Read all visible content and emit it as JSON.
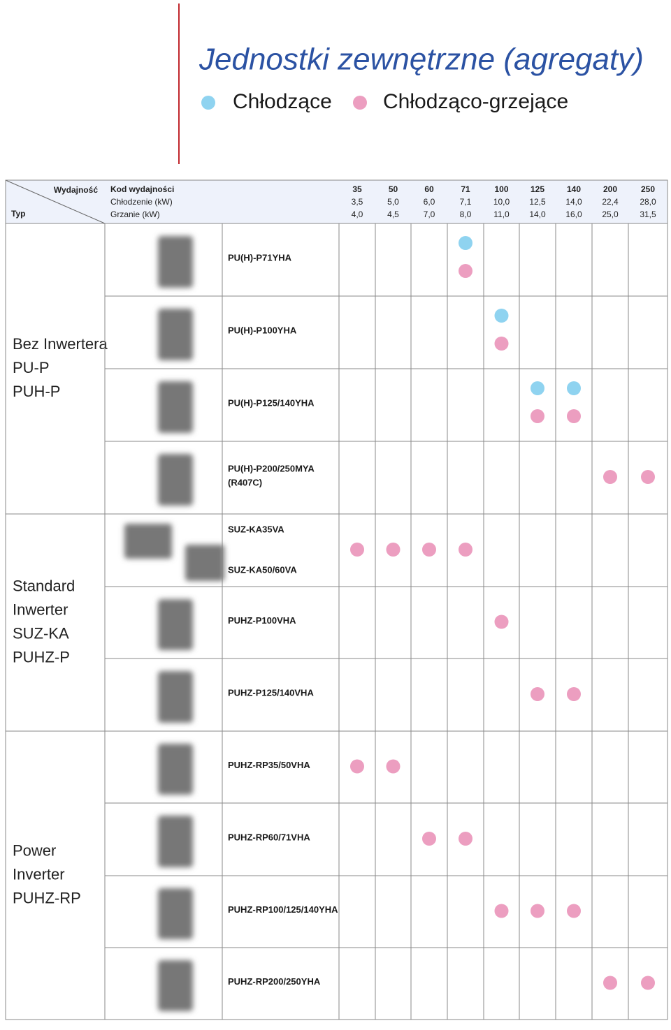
{
  "header": {
    "title": "Jednostki zewnętrzne (agregaty)",
    "legend": [
      {
        "label": "Chłodzące",
        "color": "#8fd3f0"
      },
      {
        "label": "Chłodząco-grzejące",
        "color": "#ec9ec0"
      }
    ]
  },
  "table": {
    "corner_top": "Wydajność",
    "corner_bottom": "Typ",
    "row_labels": [
      "Kod wydajności",
      "Chłodzenie (kW)",
      "Grzanie (kW)"
    ],
    "columns": [
      {
        "code": "35",
        "cooling": "3,5",
        "heating": "4,0"
      },
      {
        "code": "50",
        "cooling": "5,0",
        "heating": "4,5"
      },
      {
        "code": "60",
        "cooling": "6,0",
        "heating": "7,0"
      },
      {
        "code": "71",
        "cooling": "7,1",
        "heating": "8,0"
      },
      {
        "code": "100",
        "cooling": "10,0",
        "heating": "11,0"
      },
      {
        "code": "125",
        "cooling": "12,5",
        "heating": "14,0"
      },
      {
        "code": "140",
        "cooling": "14,0",
        "heating": "16,0"
      },
      {
        "code": "200",
        "cooling": "22,4",
        "heating": "25,0"
      },
      {
        "code": "250",
        "cooling": "28,0",
        "heating": "31,5"
      }
    ],
    "groups": [
      {
        "label": [
          "Bez Inwertera",
          "PU-P",
          "PUH-P"
        ],
        "rows": [
          {
            "models": [
              "PU(H)-P71YHA"
            ],
            "cooling": [
              false,
              false,
              false,
              true,
              false,
              false,
              false,
              false,
              false
            ],
            "heating": [
              false,
              false,
              false,
              true,
              false,
              false,
              false,
              false,
              false
            ]
          },
          {
            "models": [
              "PU(H)-P100YHA"
            ],
            "cooling": [
              false,
              false,
              false,
              false,
              true,
              false,
              false,
              false,
              false
            ],
            "heating": [
              false,
              false,
              false,
              false,
              true,
              false,
              false,
              false,
              false
            ]
          },
          {
            "models": [
              "PU(H)-P125/140YHA"
            ],
            "cooling": [
              false,
              false,
              false,
              false,
              false,
              true,
              true,
              false,
              false
            ],
            "heating": [
              false,
              false,
              false,
              false,
              false,
              true,
              true,
              false,
              false
            ]
          },
          {
            "models": [
              "PU(H)-P200/250MYA",
              "(R407C)"
            ],
            "cooling": [
              false,
              false,
              false,
              false,
              false,
              false,
              false,
              false,
              false
            ],
            "heating": [
              false,
              false,
              false,
              false,
              false,
              false,
              false,
              true,
              true
            ]
          }
        ]
      },
      {
        "label": [
          "Standard",
          "Inwerter",
          "SUZ-KA",
          "PUHZ-P"
        ],
        "rows": [
          {
            "models": [
              "SUZ-KA35VA",
              "SUZ-KA50/60VA"
            ],
            "cooling": [
              false,
              false,
              false,
              false,
              false,
              false,
              false,
              false,
              false
            ],
            "heating": [
              true,
              true,
              true,
              true,
              false,
              false,
              false,
              false,
              false
            ]
          },
          {
            "models": [
              "PUHZ-P100VHA"
            ],
            "cooling": [
              false,
              false,
              false,
              false,
              false,
              false,
              false,
              false,
              false
            ],
            "heating": [
              false,
              false,
              false,
              false,
              true,
              false,
              false,
              false,
              false
            ]
          },
          {
            "models": [
              "PUHZ-P125/140VHA"
            ],
            "cooling": [
              false,
              false,
              false,
              false,
              false,
              false,
              false,
              false,
              false
            ],
            "heating": [
              false,
              false,
              false,
              false,
              false,
              true,
              true,
              false,
              false
            ]
          }
        ]
      },
      {
        "label": [
          "Power",
          "Inverter",
          "PUHZ-RP"
        ],
        "rows": [
          {
            "models": [
              "PUHZ-RP35/50VHA"
            ],
            "cooling": [
              false,
              false,
              false,
              false,
              false,
              false,
              false,
              false,
              false
            ],
            "heating": [
              true,
              true,
              false,
              false,
              false,
              false,
              false,
              false,
              false
            ]
          },
          {
            "models": [
              "PUHZ-RP60/71VHA"
            ],
            "cooling": [
              false,
              false,
              false,
              false,
              false,
              false,
              false,
              false,
              false
            ],
            "heating": [
              false,
              false,
              true,
              true,
              false,
              false,
              false,
              false,
              false
            ]
          },
          {
            "models": [
              "PUHZ-RP100/125/140YHA"
            ],
            "cooling": [
              false,
              false,
              false,
              false,
              false,
              false,
              false,
              false,
              false
            ],
            "heating": [
              false,
              false,
              false,
              false,
              true,
              true,
              true,
              false,
              false
            ]
          },
          {
            "models": [
              "PUHZ-RP200/250YHA"
            ],
            "cooling": [
              false,
              false,
              false,
              false,
              false,
              false,
              false,
              false,
              false
            ],
            "heating": [
              false,
              false,
              false,
              false,
              false,
              false,
              false,
              true,
              true
            ]
          }
        ]
      }
    ]
  }
}
